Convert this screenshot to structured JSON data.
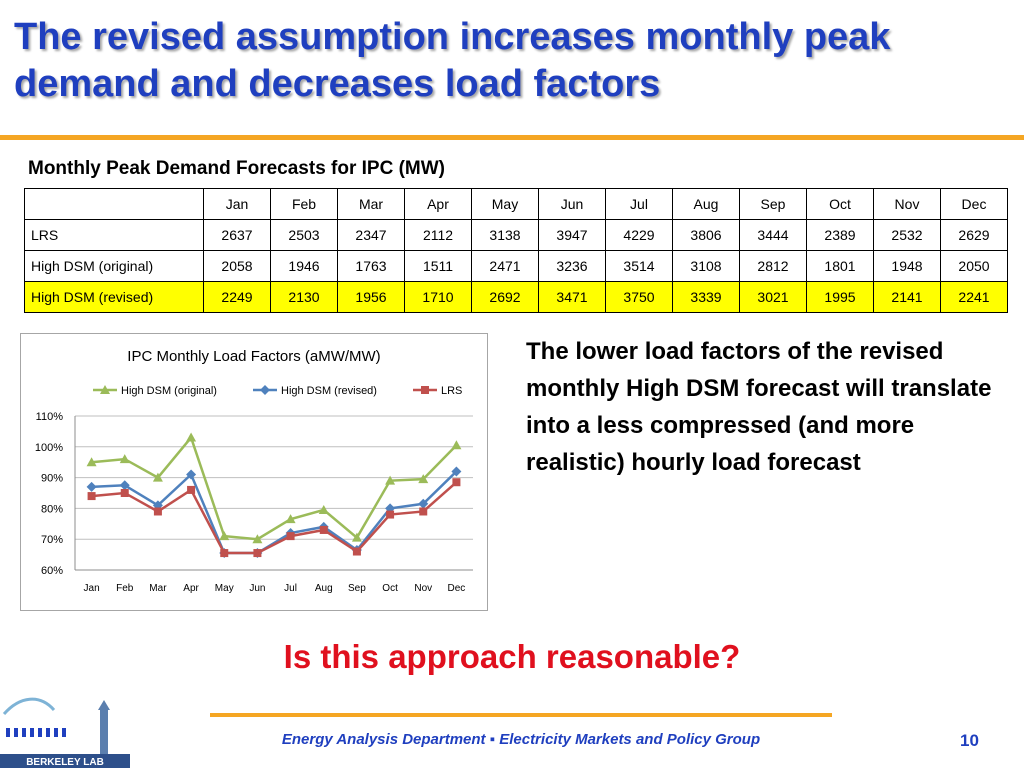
{
  "slide": {
    "title": "The revised assumption increases monthly peak demand and decreases load factors",
    "side_text": "The lower load factors of the revised monthly High DSM forecast will translate into a less compressed (and more realistic) hourly load forecast",
    "question": "Is this approach reasonable?",
    "footer": "Energy Analysis Department ▪ Electricity Markets and Policy Group",
    "page_number": "10",
    "logo_text": "BERKELEY LAB",
    "accent_color": "#f5a623",
    "title_color": "#1f3fbf",
    "question_color": "#e0101e"
  },
  "table": {
    "heading": "Monthly Peak Demand Forecasts for IPC (MW)",
    "columns": [
      "Jan",
      "Feb",
      "Mar",
      "Apr",
      "May",
      "Jun",
      "Jul",
      "Aug",
      "Sep",
      "Oct",
      "Nov",
      "Dec"
    ],
    "rows": [
      {
        "label": "LRS",
        "values": [
          "2637",
          "2503",
          "2347",
          "2112",
          "3138",
          "3947",
          "4229",
          "3806",
          "3444",
          "2389",
          "2532",
          "2629"
        ],
        "highlight": false
      },
      {
        "label": "High DSM (original)",
        "values": [
          "2058",
          "1946",
          "1763",
          "1511",
          "2471",
          "3236",
          "3514",
          "3108",
          "2812",
          "1801",
          "1948",
          "2050"
        ],
        "highlight": false
      },
      {
        "label": "High DSM (revised)",
        "values": [
          "2249",
          "2130",
          "1956",
          "1710",
          "2692",
          "3471",
          "3750",
          "3339",
          "3021",
          "1995",
          "2141",
          "2241"
        ],
        "highlight": true
      }
    ],
    "highlight_color": "#ffff00"
  },
  "chart_data": {
    "type": "line",
    "title": "IPC Monthly  Load  Factors (aMW/MW)",
    "categories": [
      "Jan",
      "Feb",
      "Mar",
      "Apr",
      "May",
      "Jun",
      "Jul",
      "Aug",
      "Sep",
      "Oct",
      "Nov",
      "Dec"
    ],
    "series": [
      {
        "name": "High DSM (original)",
        "color": "#9bbb59",
        "marker": "triangle",
        "values": [
          95,
          96,
          90,
          103,
          71,
          70,
          76.5,
          79.5,
          70.5,
          89,
          89.5,
          100.5
        ]
      },
      {
        "name": "High DSM (revised)",
        "color": "#4f81bd",
        "marker": "diamond",
        "values": [
          87,
          87.5,
          81,
          91,
          65.5,
          65.5,
          72,
          74,
          66.5,
          80,
          81.5,
          92
        ]
      },
      {
        "name": "LRS",
        "color": "#c0504d",
        "marker": "square",
        "values": [
          84,
          85,
          79,
          86,
          65.5,
          65.5,
          71,
          73,
          66,
          78,
          79,
          88.5
        ]
      }
    ],
    "ylim": [
      60,
      110
    ],
    "yticks": [
      60,
      70,
      80,
      90,
      100,
      110
    ],
    "ytick_labels": [
      "60%",
      "70%",
      "80%",
      "90%",
      "100%",
      "110%"
    ],
    "grid": true,
    "legend_position": "top"
  }
}
